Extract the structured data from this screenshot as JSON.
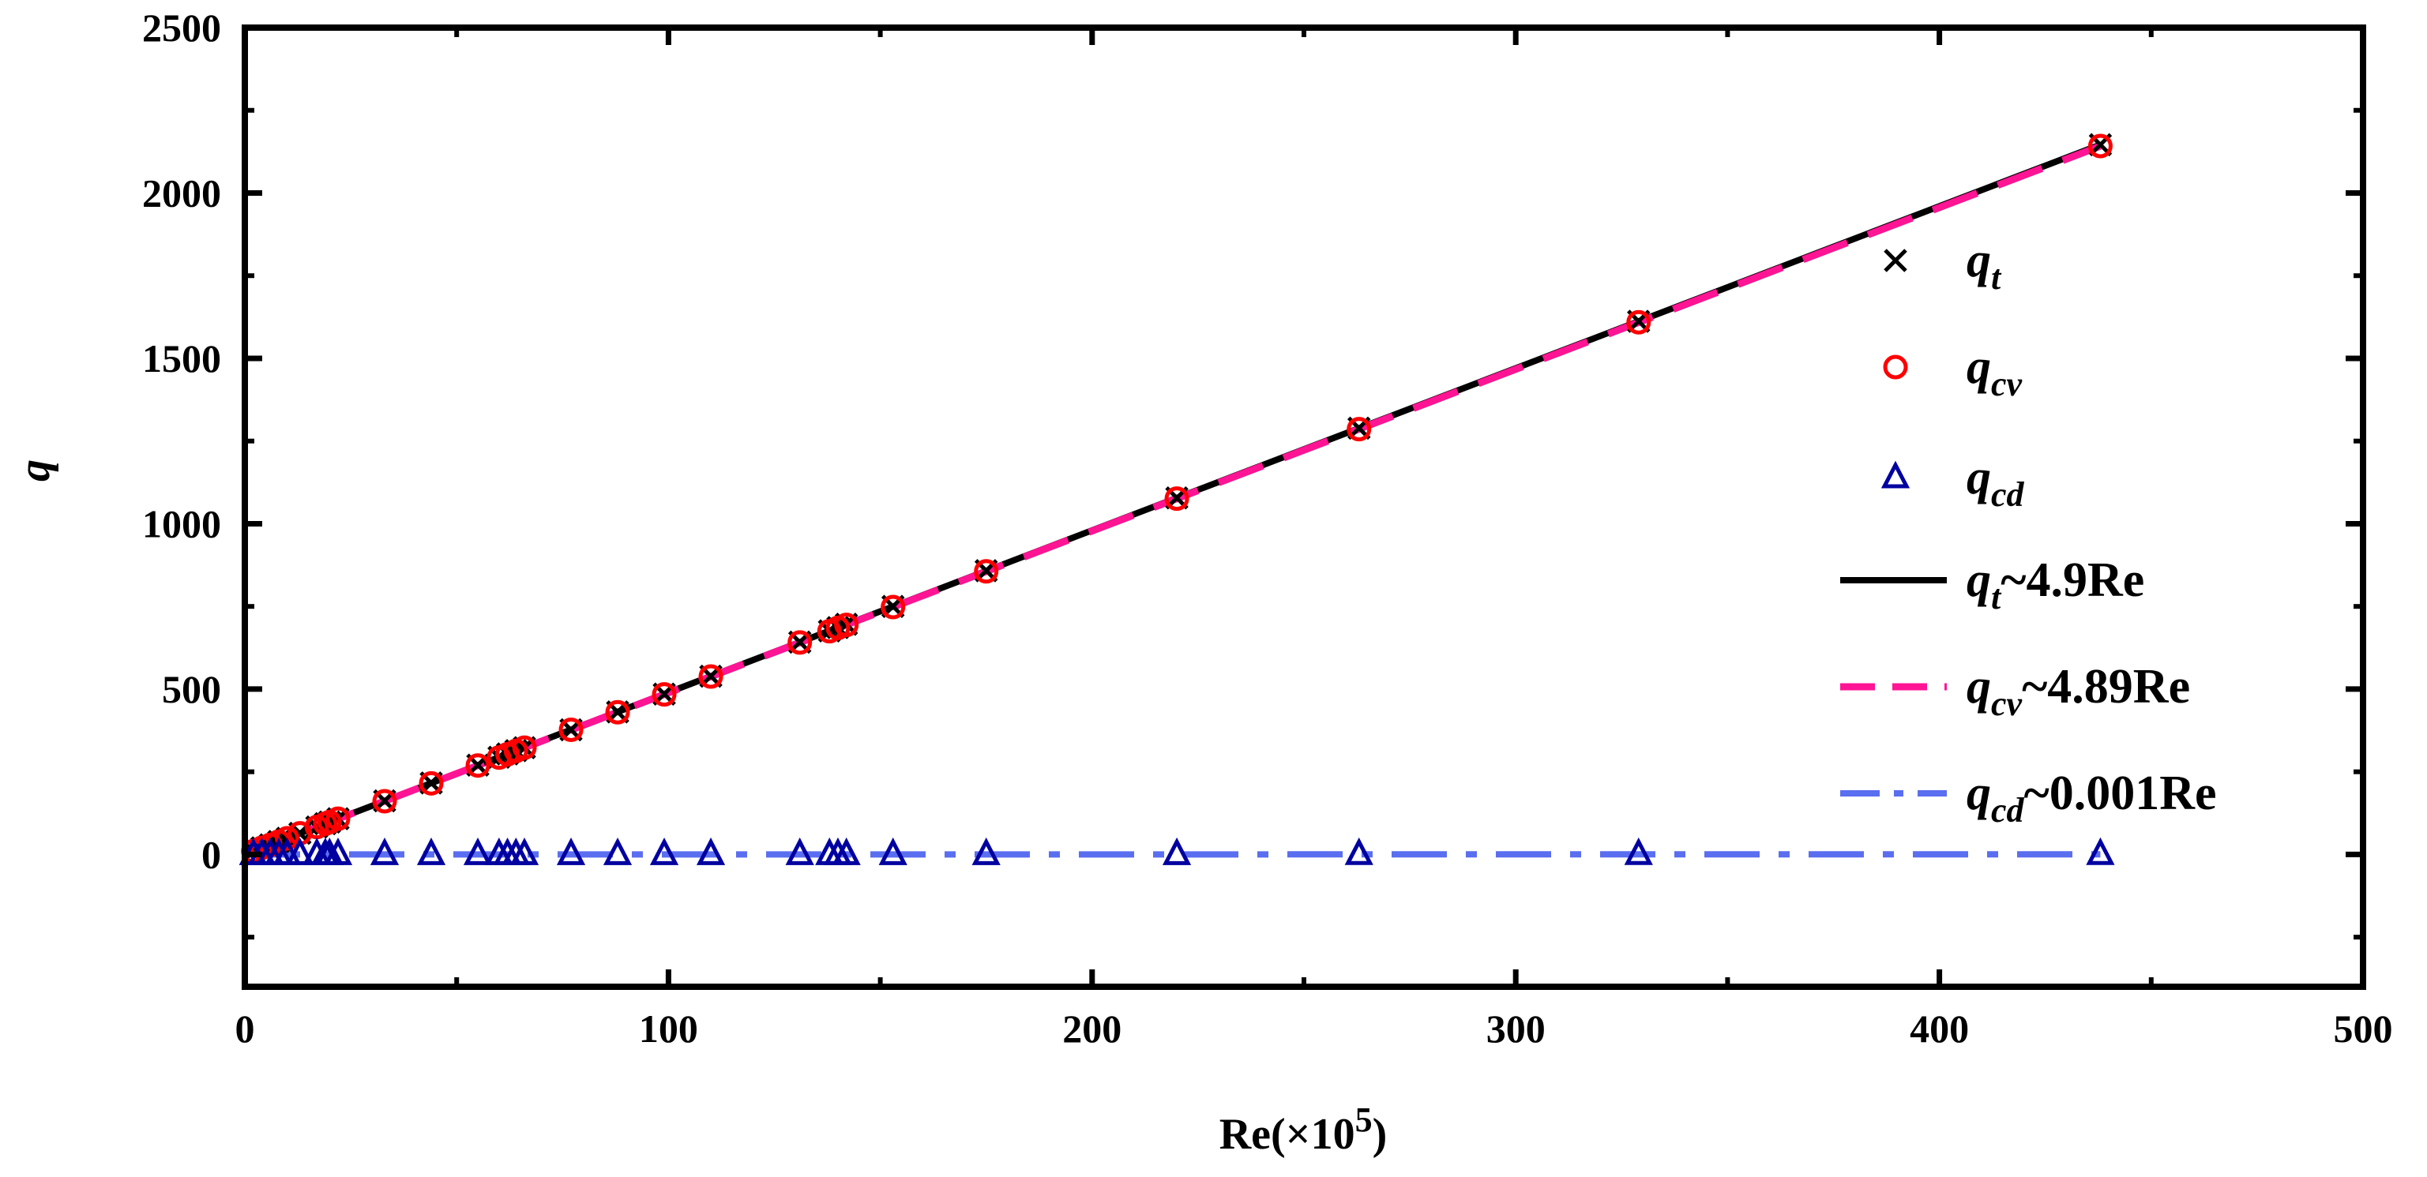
{
  "chart_data": {
    "type": "scatter",
    "title": "",
    "xlabel": "Re(×10",
    "xlabel_sup": "5",
    "xlabel_close": ")",
    "ylabel": "q",
    "xlim": [
      0,
      500
    ],
    "ylim": [
      -400,
      2500
    ],
    "xticks": [
      0,
      100,
      200,
      300,
      400,
      500
    ],
    "yticks": [
      0,
      500,
      1000,
      1500,
      2000,
      2500
    ],
    "x": [
      2,
      4,
      6,
      8,
      10,
      13,
      17,
      19,
      20,
      22,
      33,
      44,
      55,
      60,
      62,
      64,
      66,
      77,
      88,
      99,
      110,
      131,
      138,
      140,
      142,
      153,
      175,
      220,
      263,
      329,
      438
    ],
    "series": [
      {
        "name": "q_t",
        "marker": "x",
        "color": "#000000",
        "values": [
          10,
          20,
          29,
          39,
          49,
          64,
          83,
          93,
          98,
          108,
          162,
          216,
          270,
          294,
          304,
          314,
          323,
          377,
          431,
          485,
          539,
          642,
          676,
          686,
          696,
          750,
          858,
          1078,
          1289,
          1612,
          2146
        ]
      },
      {
        "name": "q_cv",
        "marker": "o",
        "color": "#ff0000",
        "values": [
          10,
          20,
          29,
          39,
          49,
          64,
          83,
          93,
          98,
          108,
          161,
          215,
          269,
          293,
          303,
          313,
          323,
          377,
          430,
          484,
          538,
          641,
          675,
          685,
          694,
          748,
          856,
          1076,
          1286,
          1609,
          2142
        ]
      },
      {
        "name": "q_cd",
        "marker": "triangle",
        "color": "#0000a0",
        "values": [
          0.002,
          0.004,
          0.006,
          0.008,
          0.01,
          0.013,
          0.017,
          0.019,
          0.02,
          0.022,
          0.033,
          0.044,
          0.055,
          0.06,
          0.062,
          0.064,
          0.066,
          0.077,
          0.088,
          0.099,
          0.11,
          0.131,
          0.138,
          0.14,
          0.142,
          0.153,
          0.175,
          0.22,
          0.263,
          0.329,
          0.438
        ]
      }
    ],
    "fits": [
      {
        "name": "q_t~4.9Re",
        "slope": 4.9,
        "style": "solid",
        "color": "#000000",
        "xrange": [
          0,
          438
        ]
      },
      {
        "name": "q_cv~4.89Re",
        "slope": 4.89,
        "style": "dashed",
        "color": "#ff1493",
        "xrange": [
          0,
          438
        ]
      },
      {
        "name": "q_cd~0.001Re",
        "slope": 0.001,
        "style": "dashdot",
        "color": "#5a6ef0",
        "xrange": [
          0,
          438
        ]
      }
    ],
    "legend": {
      "position": "right",
      "entries": [
        {
          "base": "q",
          "sub": "t",
          "rest": ""
        },
        {
          "base": "q",
          "sub": "cv",
          "rest": ""
        },
        {
          "base": "q",
          "sub": "cd",
          "rest": ""
        },
        {
          "base": "q",
          "sub": "t",
          "rest": "~4.9Re"
        },
        {
          "base": "q",
          "sub": "cv",
          "rest": "~4.89Re"
        },
        {
          "base": "q",
          "sub": "cd",
          "rest": "~0.001Re"
        }
      ]
    },
    "grid": false
  }
}
